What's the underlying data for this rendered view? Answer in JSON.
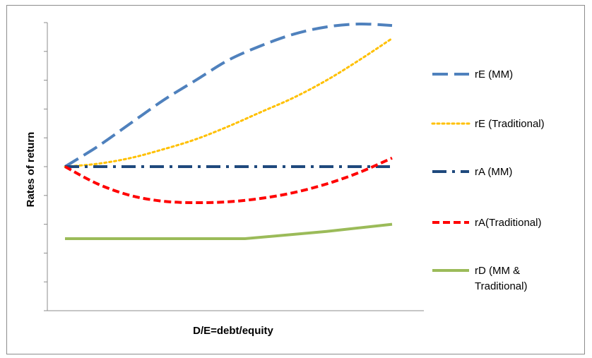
{
  "chart_data": {
    "type": "line",
    "title": "",
    "xlabel": "D/E=debt/equity",
    "ylabel": "Rates of return",
    "xlim": [
      0,
      10
    ],
    "ylim": [
      0,
      10
    ],
    "y_ticks": [
      0,
      1,
      2,
      3,
      4,
      5,
      6,
      7,
      8,
      9,
      10
    ],
    "grid": false,
    "legend_position": "right",
    "series": [
      {
        "name": "rE (MM)",
        "color": "#4F81BD",
        "dash": "long-dash",
        "x": [
          0,
          1,
          2,
          3,
          4,
          5,
          6,
          7,
          8,
          9,
          10
        ],
        "y": [
          5.0,
          5.7,
          6.5,
          7.3,
          8.0,
          8.7,
          9.2,
          9.6,
          9.85,
          9.95,
          9.9
        ]
      },
      {
        "name": "rE (Traditional)",
        "color": "#FFC000",
        "dash": "dotted",
        "x": [
          0,
          1,
          2,
          3,
          4,
          5,
          6,
          7,
          8,
          9,
          10
        ],
        "y": [
          5.0,
          5.1,
          5.3,
          5.6,
          5.95,
          6.4,
          6.9,
          7.4,
          8.0,
          8.7,
          9.45
        ]
      },
      {
        "name": "rA (MM)",
        "color": "#1F497D",
        "dash": "dash-dot",
        "x": [
          0,
          10
        ],
        "y": [
          5.0,
          5.0
        ]
      },
      {
        "name": "rA(Traditional)",
        "color": "#FF0000",
        "dash": "short-dash",
        "x": [
          0,
          1,
          2,
          3,
          4,
          5,
          6,
          7,
          8,
          9,
          10
        ],
        "y": [
          5.0,
          4.4,
          4.0,
          3.8,
          3.75,
          3.78,
          3.9,
          4.1,
          4.4,
          4.8,
          5.3
        ]
      },
      {
        "name": "rD (MM & Traditional)",
        "name_lines": [
          "rD (MM &",
          "Traditional)"
        ],
        "color": "#9BBB59",
        "dash": "solid",
        "x": [
          0,
          5.5,
          8,
          10
        ],
        "y": [
          2.5,
          2.5,
          2.75,
          3.0
        ]
      }
    ]
  }
}
